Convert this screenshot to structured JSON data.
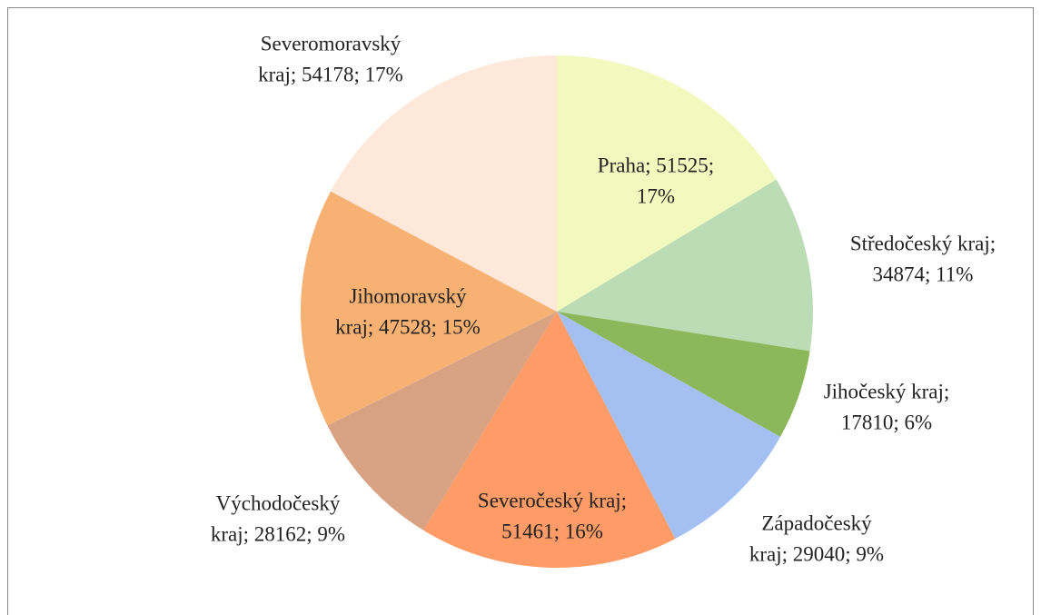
{
  "chart_data": {
    "type": "pie",
    "values": [
      51525,
      34874,
      17810,
      29040,
      51461,
      28162,
      47528,
      54178
    ],
    "value_labels": [
      [
        "Praha; 51525;",
        "17%"
      ],
      [
        "Středočeský kraj;",
        "34874; 11%"
      ],
      [
        "Jihočeský kraj;",
        "17810; 6%"
      ],
      [
        "Západočeský",
        "kraj; 29040; 9%"
      ],
      [
        "Severočeský kraj;",
        "51461; 16%"
      ],
      [
        "Východočeský",
        "kraj; 28162; 9%"
      ],
      [
        "Jihomoravský",
        "kraj; 47528; 15%"
      ],
      [
        "Severomoravský",
        "kraj; 54178; 17%"
      ]
    ],
    "colors": [
      "#f2f9bf",
      "#bcdcb5",
      "#8db75b",
      "#a4bff2",
      "#fe9b66",
      "#d8a283",
      "#f7b273",
      "#fde8da"
    ]
  }
}
